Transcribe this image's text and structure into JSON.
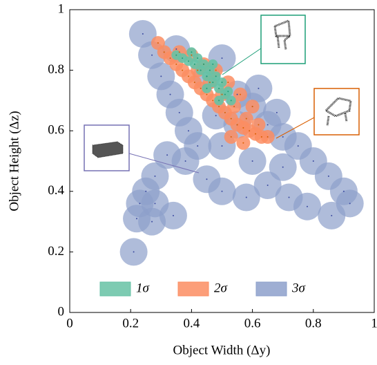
{
  "chart_data": {
    "type": "scatter",
    "x_label": "Object Width (Δy)",
    "y_label": "Object Height (Δz)",
    "xlim": [
      0,
      1
    ],
    "ylim": [
      0,
      1
    ],
    "xticks": [
      0,
      0.2,
      0.4,
      0.6,
      0.8,
      1
    ],
    "yticks": [
      0,
      0.2,
      0.4,
      0.6,
      0.8,
      1
    ],
    "legend": "lower center",
    "series": [
      {
        "name": "3σ",
        "color": "#8da0cb",
        "x": [
          0.24,
          0.27,
          0.3,
          0.33,
          0.36,
          0.39,
          0.45,
          0.55,
          0.6,
          0.65,
          0.7,
          0.75,
          0.8,
          0.85,
          0.9,
          0.92,
          0.86,
          0.78,
          0.72,
          0.65,
          0.58,
          0.5,
          0.45,
          0.38,
          0.32,
          0.28,
          0.25,
          0.23,
          0.28,
          0.34,
          0.22,
          0.27,
          0.21,
          0.42,
          0.5,
          0.6,
          0.7,
          0.48,
          0.55,
          0.35,
          0.5,
          0.62,
          0.68
        ],
        "y": [
          0.92,
          0.85,
          0.78,
          0.72,
          0.66,
          0.6,
          0.78,
          0.72,
          0.68,
          0.62,
          0.58,
          0.55,
          0.5,
          0.45,
          0.4,
          0.36,
          0.32,
          0.35,
          0.38,
          0.42,
          0.38,
          0.4,
          0.44,
          0.5,
          0.52,
          0.45,
          0.4,
          0.36,
          0.36,
          0.32,
          0.31,
          0.3,
          0.2,
          0.55,
          0.55,
          0.5,
          0.48,
          0.65,
          0.62,
          0.87,
          0.84,
          0.74,
          0.66
        ]
      },
      {
        "name": "2σ",
        "color": "#fc8d62",
        "x": [
          0.29,
          0.31,
          0.33,
          0.35,
          0.37,
          0.39,
          0.41,
          0.43,
          0.45,
          0.47,
          0.49,
          0.51,
          0.53,
          0.55,
          0.57,
          0.59,
          0.61,
          0.63,
          0.65,
          0.36,
          0.4,
          0.44,
          0.48,
          0.52,
          0.56,
          0.6,
          0.42,
          0.46,
          0.5,
          0.54,
          0.58,
          0.62,
          0.53,
          0.57
        ],
        "y": [
          0.89,
          0.86,
          0.84,
          0.82,
          0.8,
          0.78,
          0.76,
          0.74,
          0.72,
          0.7,
          0.68,
          0.66,
          0.64,
          0.62,
          0.61,
          0.6,
          0.59,
          0.58,
          0.58,
          0.86,
          0.85,
          0.82,
          0.8,
          0.76,
          0.72,
          0.68,
          0.8,
          0.76,
          0.72,
          0.68,
          0.64,
          0.62,
          0.58,
          0.56
        ]
      },
      {
        "name": "1σ",
        "color": "#66c2a5",
        "x": [
          0.35,
          0.37,
          0.39,
          0.41,
          0.43,
          0.45,
          0.47,
          0.49,
          0.51,
          0.53,
          0.42,
          0.44,
          0.46,
          0.48,
          0.5,
          0.52,
          0.45,
          0.49,
          0.4,
          0.47
        ],
        "y": [
          0.85,
          0.84,
          0.83,
          0.82,
          0.8,
          0.78,
          0.76,
          0.74,
          0.72,
          0.7,
          0.84,
          0.82,
          0.8,
          0.78,
          0.76,
          0.73,
          0.74,
          0.7,
          0.86,
          0.82
        ]
      }
    ]
  }
}
